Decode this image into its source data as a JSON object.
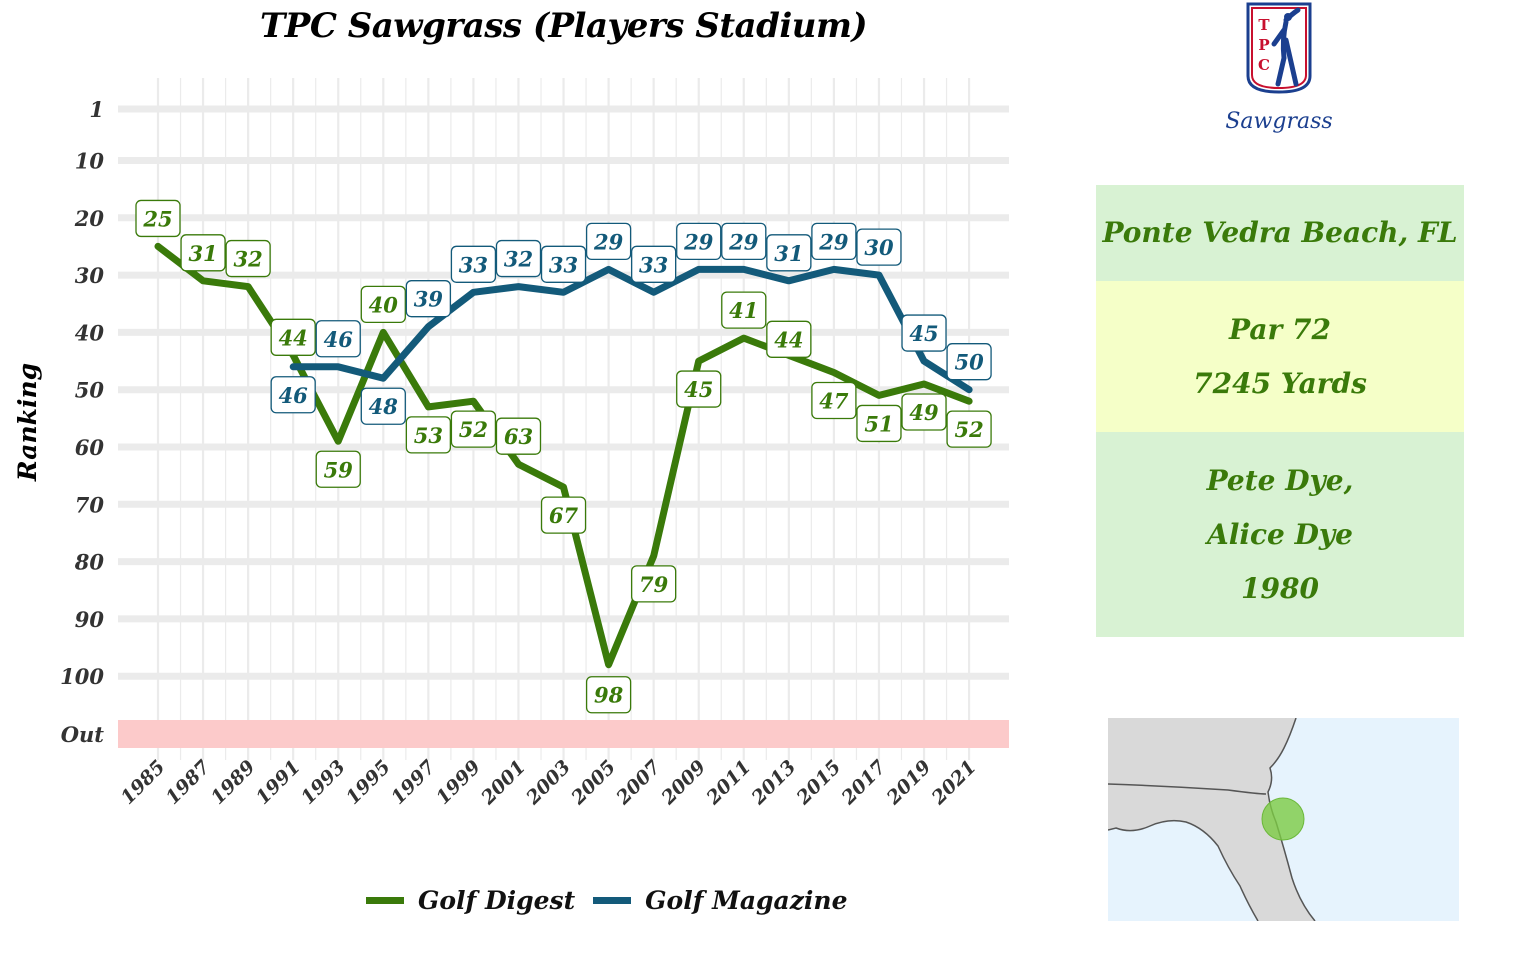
{
  "chart_data": {
    "type": "line",
    "title": "TPC Sawgrass (Players Stadium)",
    "ylabel": "Ranking",
    "xlabel": "",
    "y_ticks": [
      "1",
      "10",
      "20",
      "30",
      "40",
      "50",
      "60",
      "70",
      "80",
      "90",
      "100",
      "Out"
    ],
    "ylim": [
      1,
      110
    ],
    "y_reversed": true,
    "x_ticks": [
      "1985",
      "1987",
      "1989",
      "1991",
      "1993",
      "1995",
      "1997",
      "1999",
      "2001",
      "2003",
      "2005",
      "2007",
      "2009",
      "2011",
      "2013",
      "2015",
      "2017",
      "2019",
      "2021"
    ],
    "out_band_label": "Out",
    "grid": true,
    "legend_position": "bottom",
    "series": [
      {
        "name": "Golf Digest",
        "color": "#3a7a0a",
        "points": [
          {
            "year": 1985,
            "rank": 25,
            "label": "25"
          },
          {
            "year": 1987,
            "rank": 31,
            "label": "31"
          },
          {
            "year": 1989,
            "rank": 32,
            "label": "32"
          },
          {
            "year": 1991,
            "rank": 44,
            "label": "44"
          },
          {
            "year": 1993,
            "rank": 59,
            "label": "59"
          },
          {
            "year": 1995,
            "rank": 40,
            "label": "40"
          },
          {
            "year": 1997,
            "rank": 53,
            "label": "53"
          },
          {
            "year": 1999,
            "rank": 52,
            "label": "52"
          },
          {
            "year": 2001,
            "rank": 63,
            "label": "63"
          },
          {
            "year": 2003,
            "rank": 67,
            "label": "67"
          },
          {
            "year": 2005,
            "rank": 98,
            "label": "98"
          },
          {
            "year": 2007,
            "rank": 79,
            "label": "79"
          },
          {
            "year": 2009,
            "rank": 45,
            "label": "45"
          },
          {
            "year": 2011,
            "rank": 41,
            "label": "41"
          },
          {
            "year": 2013,
            "rank": 44,
            "label": "44"
          },
          {
            "year": 2015,
            "rank": 47,
            "label": "47"
          },
          {
            "year": 2017,
            "rank": 51,
            "label": "51"
          },
          {
            "year": 2019,
            "rank": 49,
            "label": "49"
          },
          {
            "year": 2021,
            "rank": 52,
            "label": "52"
          }
        ]
      },
      {
        "name": "Golf Magazine",
        "color": "#135a7a",
        "points": [
          {
            "year": 1991,
            "rank": 46,
            "label": "46"
          },
          {
            "year": 1993,
            "rank": 46,
            "label": "46"
          },
          {
            "year": 1995,
            "rank": 48,
            "label": "48"
          },
          {
            "year": 1997,
            "rank": 39,
            "label": "39"
          },
          {
            "year": 1999,
            "rank": 33,
            "label": "33"
          },
          {
            "year": 2001,
            "rank": 32,
            "label": "32"
          },
          {
            "year": 2003,
            "rank": 33,
            "label": "33"
          },
          {
            "year": 2005,
            "rank": 29,
            "label": "29"
          },
          {
            "year": 2007,
            "rank": 33,
            "label": "33"
          },
          {
            "year": 2009,
            "rank": 29,
            "label": "29"
          },
          {
            "year": 2011,
            "rank": 29,
            "label": "29"
          },
          {
            "year": 2013,
            "rank": 31,
            "label": "31"
          },
          {
            "year": 2015,
            "rank": 29,
            "label": "29"
          },
          {
            "year": 2017,
            "rank": 30,
            "label": "30"
          },
          {
            "year": 2019,
            "rank": 45,
            "label": "45"
          },
          {
            "year": 2021,
            "rank": 50,
            "label": "50"
          }
        ]
      }
    ]
  },
  "info": {
    "location": "Ponte Vedra Beach, FL",
    "par": "Par 72",
    "yards": "7245 Yards",
    "architect_1": "Pete Dye,",
    "architect_2": "Alice Dye",
    "year_opened": "1980"
  },
  "logo": {
    "brand_text": "TPC",
    "script_text": "Sawgrass"
  },
  "colors": {
    "digest_green": "#3a7a0a",
    "magazine_blue": "#135a7a",
    "out_band": "#fccaca",
    "card_green": "#d8f2d3",
    "card_yellow": "#f5ffc8",
    "map_water": "#e6f3fd",
    "map_land": "#d9d9d9",
    "map_marker": "#7ccb44"
  }
}
